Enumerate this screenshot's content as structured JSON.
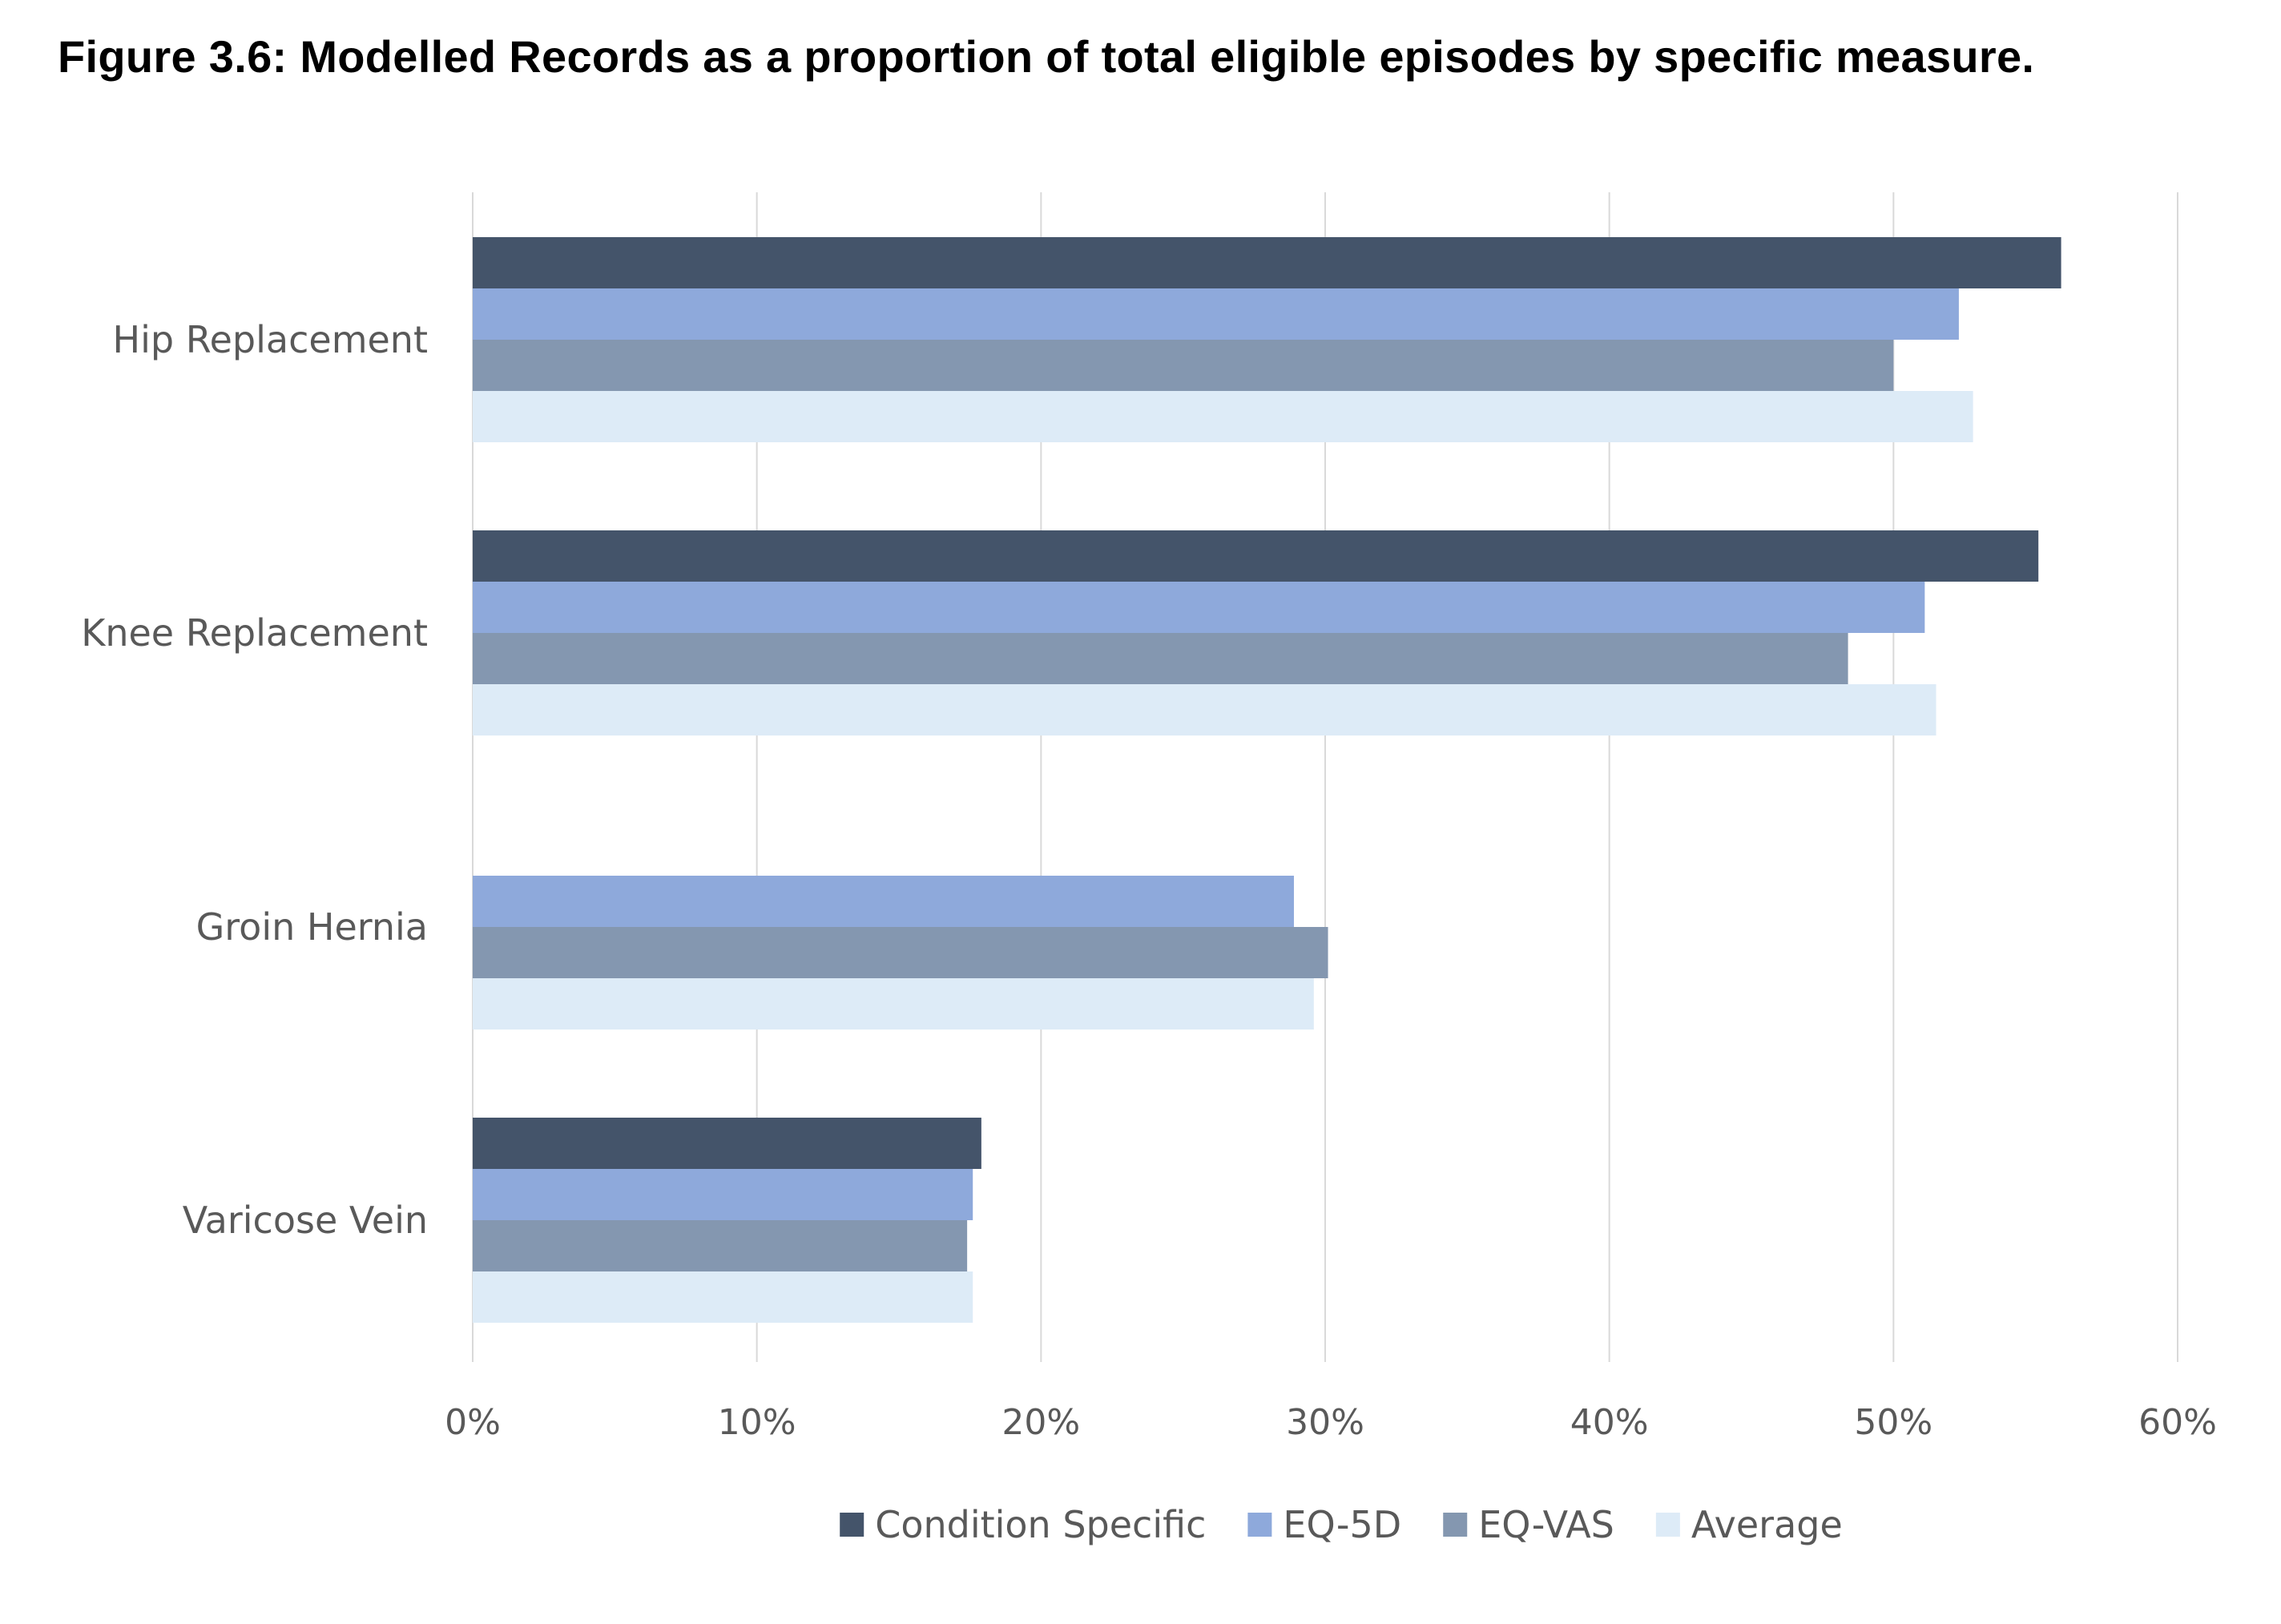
{
  "title": "Figure 3.6: Modelled Records as a proportion of total eligible episodes by specific measure.",
  "chart_data": {
    "type": "bar",
    "orientation": "horizontal",
    "categories": [
      "Hip Replacement",
      "Knee Replacement",
      "Groin Hernia",
      "Varicose Vein"
    ],
    "series": [
      {
        "name": "Condition Specific",
        "color": "#44546A",
        "values": [
          0.559,
          0.551,
          null,
          0.179
        ]
      },
      {
        "name": "EQ-5D",
        "color": "#8EA9DB",
        "values": [
          0.523,
          0.511,
          0.289,
          0.176
        ]
      },
      {
        "name": "EQ-VAS",
        "color": "#8497B0",
        "values": [
          0.5,
          0.484,
          0.301,
          0.174
        ]
      },
      {
        "name": "Average",
        "color": "#DDEBF7",
        "values": [
          0.528,
          0.515,
          0.296,
          0.176
        ]
      }
    ],
    "xlim": [
      0,
      0.6
    ],
    "xticks": [
      0,
      0.1,
      0.2,
      0.3,
      0.4,
      0.5,
      0.6
    ],
    "xtick_labels": [
      "0%",
      "10%",
      "20%",
      "30%",
      "40%",
      "50%",
      "60%"
    ],
    "grid": true,
    "gridline_color": "#D9D9D9",
    "legend_position": "bottom",
    "xlabel": "",
    "ylabel": ""
  }
}
